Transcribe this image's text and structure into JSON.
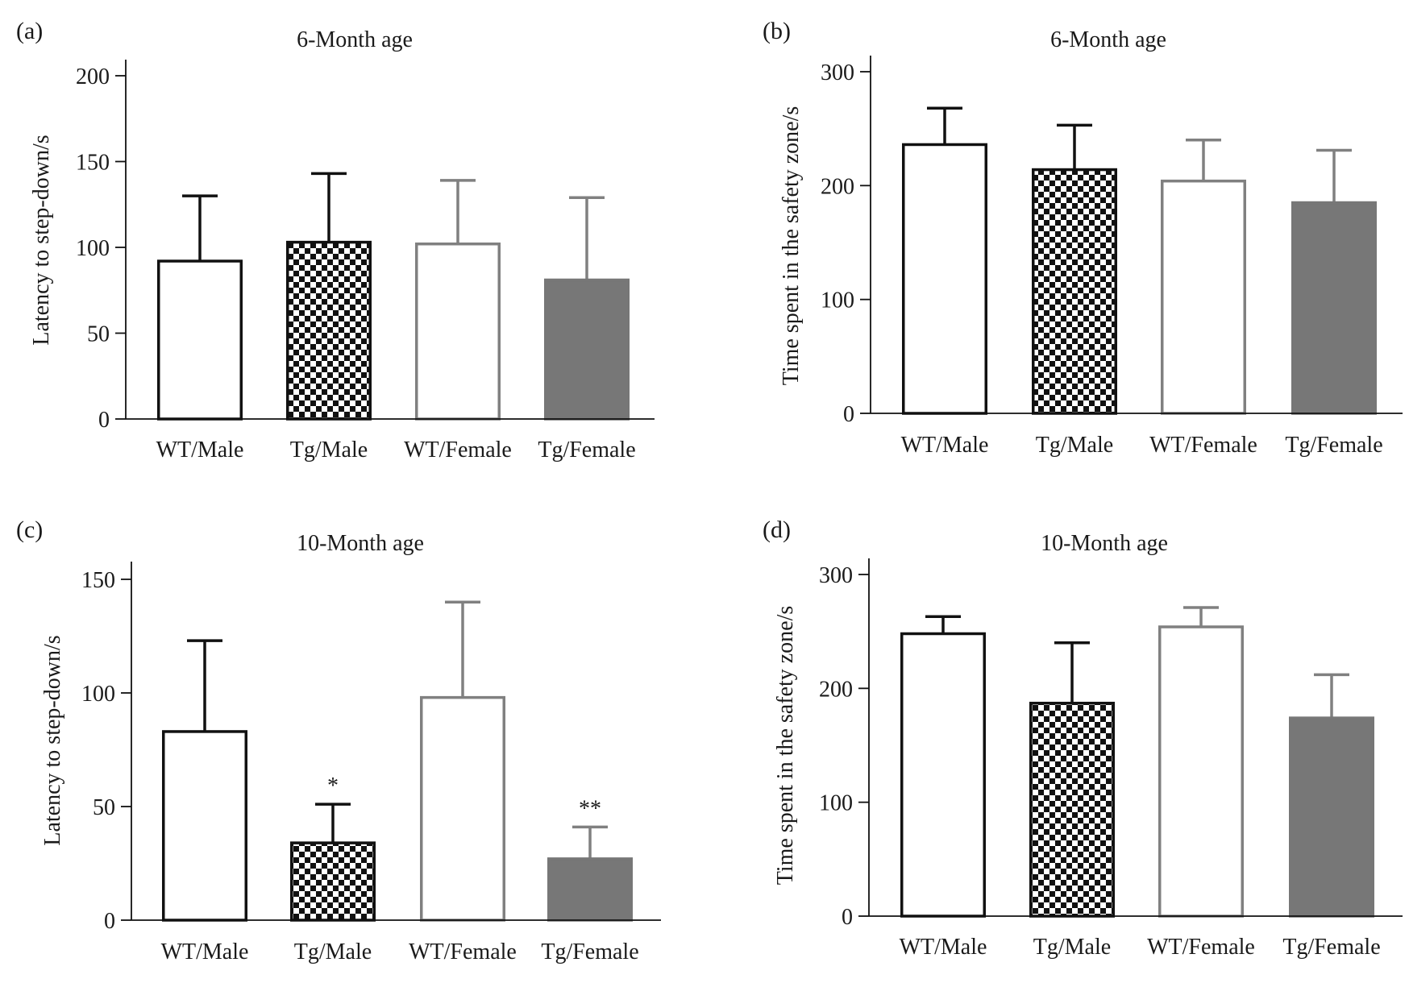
{
  "colors": {
    "black": "#111111",
    "gray_outline": "#808080",
    "gray_fill": "#777777",
    "white": "#ffffff"
  },
  "chart_data": [
    {
      "panel": "(a)",
      "type": "bar",
      "title": "6-Month age",
      "ylabel": "Latency to step-down/s",
      "xlabel": "",
      "ylim": [
        0,
        200
      ],
      "yticks": [
        0,
        50,
        100,
        150,
        200
      ],
      "categories": [
        "WT/Male",
        "Tg/Male",
        "WT/Female",
        "Tg/Female"
      ],
      "values": [
        92,
        103,
        102,
        81
      ],
      "errors": [
        38,
        40,
        37,
        48
      ],
      "bar_styles": [
        "black-outline",
        "checkered",
        "gray-outline",
        "gray-fill"
      ],
      "annotations": [
        "",
        "",
        "",
        ""
      ],
      "grid": false
    },
    {
      "panel": "(b)",
      "type": "bar",
      "title": "6-Month age",
      "ylabel": "Time spent in the safety zone/s",
      "xlabel": "",
      "ylim": [
        0,
        300
      ],
      "yticks": [
        0,
        100,
        200,
        300
      ],
      "categories": [
        "WT/Male",
        "Tg/Male",
        "WT/Female",
        "Tg/Female"
      ],
      "values": [
        236,
        214,
        204,
        185
      ],
      "errors": [
        32,
        39,
        36,
        46
      ],
      "bar_styles": [
        "black-outline",
        "checkered",
        "gray-outline",
        "gray-fill"
      ],
      "annotations": [
        "",
        "",
        "",
        ""
      ],
      "grid": false
    },
    {
      "panel": "(c)",
      "type": "bar",
      "title": "10-Month age",
      "ylabel": "Latency to step-down/s",
      "xlabel": "",
      "ylim": [
        0,
        150
      ],
      "yticks": [
        0,
        50,
        100,
        150
      ],
      "categories": [
        "WT/Male",
        "Tg/Male",
        "WT/Female",
        "Tg/Female"
      ],
      "values": [
        83,
        34,
        98,
        27
      ],
      "errors": [
        40,
        17,
        42,
        14
      ],
      "bar_styles": [
        "black-outline",
        "checkered",
        "gray-outline",
        "gray-fill"
      ],
      "annotations": [
        "",
        "*",
        "",
        "**"
      ],
      "grid": false
    },
    {
      "panel": "(d)",
      "type": "bar",
      "title": "10-Month age",
      "ylabel": "Time spent in the safety zone/s",
      "xlabel": "",
      "ylim": [
        0,
        300
      ],
      "yticks": [
        0,
        100,
        200,
        300
      ],
      "categories": [
        "WT/Male",
        "Tg/Male",
        "WT/Female",
        "Tg/Female"
      ],
      "values": [
        248,
        187,
        254,
        174
      ],
      "errors": [
        15,
        53,
        17,
        38
      ],
      "bar_styles": [
        "black-outline",
        "checkered",
        "gray-outline",
        "gray-fill"
      ],
      "annotations": [
        "",
        "",
        "",
        ""
      ],
      "grid": false
    }
  ]
}
